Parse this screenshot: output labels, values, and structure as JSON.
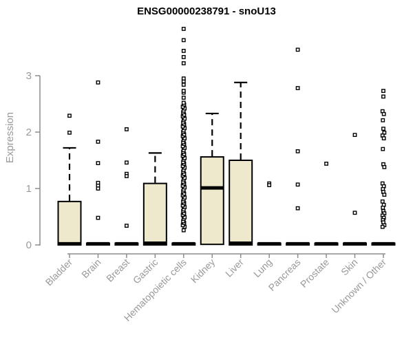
{
  "chart_data": {
    "type": "box",
    "title": "ENSG00000238791 - snoU13",
    "ylabel": "Expression",
    "xlabel": "",
    "yticks": [
      0,
      1,
      2,
      3
    ],
    "ylim": [
      0,
      3.95
    ],
    "grid": false,
    "legend": null,
    "categories": [
      "Bladder",
      "Brain",
      "Breast",
      "Gastric",
      "Hematopoietic cells",
      "Kidney",
      "Liver",
      "Lung",
      "Pancreas",
      "Prostate",
      "Skin",
      "Unknown / Other"
    ],
    "boxes": [
      {
        "category": "Bladder",
        "q1": 0,
        "median": 0.02,
        "q3": 0.77,
        "whisker_low": 0,
        "whisker_high": 1.72,
        "outliers": [
          2.29,
          1.99
        ]
      },
      {
        "category": "Brain",
        "q1": 0,
        "median": 0.02,
        "q3": 0.03,
        "whisker_low": 0,
        "whisker_high": 0.03,
        "outliers": [
          2.88,
          1.83,
          1.45,
          1.1,
          1.05,
          1.0,
          0.48
        ]
      },
      {
        "category": "Breast",
        "q1": 0,
        "median": 0.02,
        "q3": 0.03,
        "whisker_low": 0,
        "whisker_high": 0.03,
        "outliers": [
          2.05,
          1.46,
          1.26,
          1.22,
          0.34
        ]
      },
      {
        "category": "Gastric",
        "q1": 0,
        "median": 0.03,
        "q3": 1.09,
        "whisker_low": 0,
        "whisker_high": 1.63,
        "outliers": []
      },
      {
        "category": "Hematopoietic cells",
        "q1": 0,
        "median": 0.02,
        "q3": 0.03,
        "whisker_low": 0,
        "whisker_high": 0.03,
        "outliers": [
          0.26,
          0.32,
          0.35,
          0.39,
          0.42,
          0.46,
          0.49,
          0.53,
          0.56,
          0.6,
          0.63,
          0.67,
          0.7,
          0.74,
          0.77,
          0.81,
          0.84,
          0.88,
          0.91,
          0.95,
          0.98,
          1.02,
          1.05,
          1.09,
          1.12,
          1.16,
          1.19,
          1.23,
          1.26,
          1.3,
          1.33,
          1.37,
          1.4,
          1.44,
          1.47,
          1.51,
          1.54,
          1.58,
          1.61,
          1.65,
          1.68,
          1.72,
          1.75,
          1.79,
          1.82,
          1.86,
          1.89,
          1.93,
          1.96,
          2.0,
          2.03,
          2.07,
          2.1,
          2.14,
          2.17,
          2.21,
          2.24,
          2.28,
          2.31,
          2.35,
          2.38,
          2.42,
          2.45,
          2.49,
          2.52,
          2.61,
          2.7,
          2.73,
          2.84,
          2.9,
          2.95,
          3.22,
          3.33,
          3.44,
          3.63,
          3.83
        ]
      },
      {
        "category": "Kidney",
        "q1": 0.01,
        "median": 1.01,
        "q3": 1.56,
        "whisker_low": 0.01,
        "whisker_high": 2.33,
        "outliers": []
      },
      {
        "category": "Liver",
        "q1": 0,
        "median": 0.03,
        "q3": 1.5,
        "whisker_low": 0,
        "whisker_high": 2.88,
        "outliers": []
      },
      {
        "category": "Lung",
        "q1": 0,
        "median": 0.02,
        "q3": 0.03,
        "whisker_low": 0,
        "whisker_high": 0.03,
        "outliers": [
          1.09,
          1.06
        ]
      },
      {
        "category": "Pancreas",
        "q1": 0,
        "median": 0.02,
        "q3": 0.03,
        "whisker_low": 0,
        "whisker_high": 0.03,
        "outliers": [
          3.46,
          2.78,
          1.66,
          1.07,
          0.65
        ]
      },
      {
        "category": "Prostate",
        "q1": 0,
        "median": 0.02,
        "q3": 0.03,
        "whisker_low": 0,
        "whisker_high": 0.03,
        "outliers": [
          1.44
        ]
      },
      {
        "category": "Skin",
        "q1": 0,
        "median": 0.02,
        "q3": 0.03,
        "whisker_low": 0,
        "whisker_high": 0.03,
        "outliers": [
          1.95,
          0.57
        ]
      },
      {
        "category": "Unknown / Other",
        "q1": 0,
        "median": 0.02,
        "q3": 0.03,
        "whisker_low": 0,
        "whisker_high": 0.03,
        "outliers": [
          2.73,
          2.63,
          2.37,
          2.32,
          2.21,
          2.06,
          1.99,
          1.94,
          1.89,
          1.7,
          1.43,
          1.38,
          1.09,
          1.04,
          0.99,
          0.94,
          0.89,
          0.77,
          0.71,
          0.66,
          0.6,
          0.56,
          0.52,
          0.48,
          0.44,
          0.4,
          0.35,
          0.32
        ]
      }
    ],
    "colors": {
      "box_fill": "#EEE8CD",
      "box_border": "#000000",
      "median": "#000000",
      "whisker": "#000000",
      "outlier": "#000000",
      "axis_line": "#8C8C8C",
      "tick_text": "#999999",
      "title_text": "#000000",
      "background": "#FFFFFF"
    }
  }
}
